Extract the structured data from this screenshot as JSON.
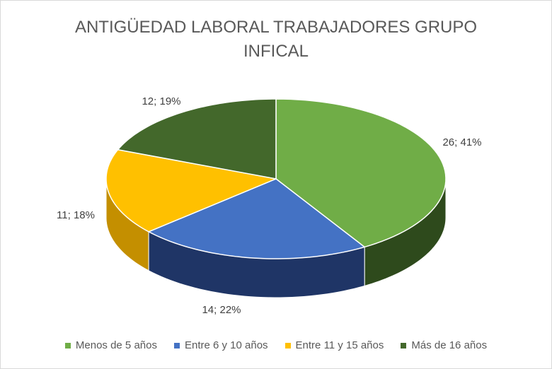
{
  "chart_data": {
    "type": "pie",
    "title_lines": [
      "ANTIGÜEDAD LABORAL TRABAJADORES GRUPO",
      "INFICAL"
    ],
    "categories": [
      "Menos de 5 años",
      "Entre 6 y 10 años",
      "Entre 11 y 15 años",
      "Más de 16 años"
    ],
    "values": [
      26,
      14,
      11,
      12
    ],
    "data_labels": [
      "26; 41%",
      "14; 22%",
      "11; 18%",
      "12; 19%"
    ],
    "colors": [
      "#70ad47",
      "#4472c4",
      "#ffc000",
      "#43682b"
    ],
    "side_colors": [
      "#2e4a1c",
      "#1f3566",
      "#c48f00",
      "#233a16"
    ],
    "legend_position": "bottom",
    "style": "3d"
  }
}
